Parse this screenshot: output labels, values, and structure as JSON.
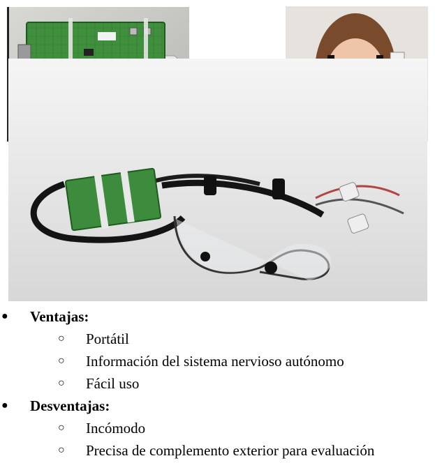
{
  "images": {
    "board": "Circuit board with card",
    "face": "Woman wearing glasses device",
    "device": "Eyeglass device with cable and board"
  },
  "list": {
    "sections": [
      {
        "title": "Ventajas:",
        "items": [
          "Portátil",
          "Información del sistema nervioso autónomo",
          "Fácil uso"
        ]
      },
      {
        "title": "Desventajas:",
        "items": [
          "Incómodo",
          "Precisa de complemento exterior para evaluación"
        ]
      }
    ],
    "bullet_main": "●",
    "bullet_sub": "○"
  }
}
